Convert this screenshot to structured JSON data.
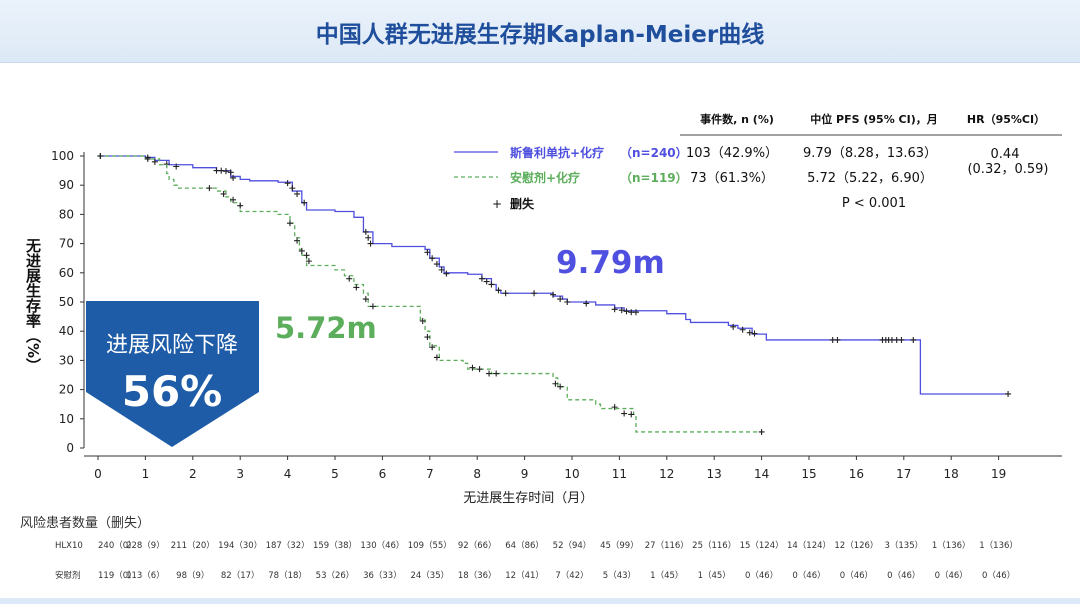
{
  "page": {
    "title": "中国人群无进展生存期Kaplan-Meier曲线"
  },
  "chart_data": {
    "type": "line",
    "subtype": "kaplan-meier",
    "title": "",
    "xlabel": "无进展生存时间（月）",
    "ylabel": "无进展生存率（%）",
    "xlim": [
      0,
      19
    ],
    "ylim": [
      0,
      100
    ],
    "x_ticks": [
      0,
      1,
      2,
      3,
      4,
      5,
      6,
      7,
      8,
      9,
      10,
      11,
      12,
      13,
      14,
      15,
      16,
      17,
      18,
      19
    ],
    "y_ticks": [
      0,
      10,
      20,
      30,
      40,
      50,
      60,
      70,
      80,
      90,
      100
    ],
    "grid": false,
    "legend_placement": "top-center",
    "table_headers": [
      "事件数, n (%)",
      "中位 PFS (95% CI)，月",
      "HR（95%CI）"
    ],
    "censor_label": "删失",
    "p_value": "P < 0.001",
    "hr": {
      "value": "0.44",
      "ci": "(0.32，0.59)"
    },
    "series": [
      {
        "name": "斯鲁利单抗+化疗",
        "n_label": "（n=240）",
        "color": "#4f4fe0",
        "dash": "solid",
        "events": "103（42.9%）",
        "median_pfs": "9.79（8.28，13.63）",
        "median_label": "9.79m",
        "steps": [
          [
            0,
            100
          ],
          [
            1.0,
            99.5
          ],
          [
            1.2,
            98.5
          ],
          [
            1.5,
            97
          ],
          [
            2.0,
            96
          ],
          [
            2.5,
            95
          ],
          [
            2.8,
            93
          ],
          [
            3.0,
            92
          ],
          [
            3.2,
            91.5
          ],
          [
            3.8,
            91
          ],
          [
            4.1,
            88
          ],
          [
            4.3,
            84
          ],
          [
            4.4,
            81.5
          ],
          [
            5.0,
            81
          ],
          [
            5.4,
            79
          ],
          [
            5.6,
            74
          ],
          [
            5.8,
            70
          ],
          [
            6.2,
            69
          ],
          [
            6.9,
            68
          ],
          [
            7.0,
            65
          ],
          [
            7.2,
            62
          ],
          [
            7.3,
            60
          ],
          [
            7.8,
            59.5
          ],
          [
            8.1,
            58
          ],
          [
            8.3,
            56
          ],
          [
            8.4,
            54
          ],
          [
            8.5,
            53
          ],
          [
            9.5,
            53
          ],
          [
            9.6,
            52
          ],
          [
            9.8,
            51
          ],
          [
            9.9,
            50
          ],
          [
            10.5,
            49
          ],
          [
            10.9,
            48
          ],
          [
            11.1,
            47
          ],
          [
            12.0,
            46
          ],
          [
            12.4,
            44
          ],
          [
            12.5,
            43
          ],
          [
            13.3,
            42
          ],
          [
            13.5,
            41
          ],
          [
            13.8,
            39
          ],
          [
            14.1,
            37
          ],
          [
            17.3,
            37
          ],
          [
            17.35,
            18.5
          ],
          [
            19.2,
            18.5
          ]
        ],
        "censors": [
          [
            0.05,
            100
          ],
          [
            1.05,
            99.5
          ],
          [
            1.45,
            97.2
          ],
          [
            1.65,
            96.4
          ],
          [
            2.5,
            95
          ],
          [
            2.6,
            95
          ],
          [
            2.7,
            94.8
          ],
          [
            2.8,
            94.4
          ],
          [
            2.85,
            92.5
          ],
          [
            4.0,
            90.7
          ],
          [
            4.1,
            89
          ],
          [
            4.2,
            87
          ],
          [
            4.35,
            84
          ],
          [
            5.65,
            74
          ],
          [
            5.7,
            72
          ],
          [
            5.75,
            70
          ],
          [
            6.95,
            67
          ],
          [
            7.05,
            65
          ],
          [
            7.15,
            63
          ],
          [
            7.25,
            61
          ],
          [
            7.35,
            59.7
          ],
          [
            8.1,
            58
          ],
          [
            8.2,
            57
          ],
          [
            8.3,
            56
          ],
          [
            8.45,
            54
          ],
          [
            8.6,
            53
          ],
          [
            9.2,
            53
          ],
          [
            9.6,
            52.5
          ],
          [
            9.75,
            51
          ],
          [
            9.9,
            50
          ],
          [
            10.3,
            49.5
          ],
          [
            10.9,
            47.5
          ],
          [
            11.05,
            47.2
          ],
          [
            11.15,
            46.8
          ],
          [
            11.25,
            46.5
          ],
          [
            11.35,
            46.5
          ],
          [
            13.4,
            41.5
          ],
          [
            13.6,
            40.5
          ],
          [
            13.75,
            39.5
          ],
          [
            13.85,
            39.2
          ],
          [
            15.5,
            37
          ],
          [
            15.6,
            37
          ],
          [
            16.55,
            37
          ],
          [
            16.62,
            37
          ],
          [
            16.68,
            37
          ],
          [
            16.75,
            37
          ],
          [
            16.85,
            37
          ],
          [
            16.95,
            37
          ],
          [
            17.2,
            37
          ],
          [
            19.2,
            18.5
          ]
        ]
      },
      {
        "name": "安慰剂+化疗",
        "n_label": "（n=119）",
        "color": "#5cae5c",
        "dash": "dashed",
        "events": "73（61.3%）",
        "median_pfs": "5.72（5.22，6.90）",
        "median_label": "5.72m",
        "steps": [
          [
            0,
            100
          ],
          [
            1.0,
            99
          ],
          [
            1.3,
            97
          ],
          [
            1.45,
            94
          ],
          [
            1.5,
            92
          ],
          [
            1.6,
            90
          ],
          [
            1.7,
            89
          ],
          [
            2.5,
            88
          ],
          [
            2.7,
            86
          ],
          [
            2.8,
            84
          ],
          [
            3.0,
            81
          ],
          [
            3.8,
            80
          ],
          [
            4.05,
            77
          ],
          [
            4.15,
            72
          ],
          [
            4.25,
            68
          ],
          [
            4.3,
            66
          ],
          [
            4.4,
            62.5
          ],
          [
            5.0,
            61
          ],
          [
            5.2,
            59
          ],
          [
            5.4,
            56
          ],
          [
            5.6,
            53
          ],
          [
            5.7,
            48.5
          ],
          [
            6.7,
            48.5
          ],
          [
            6.8,
            44
          ],
          [
            6.9,
            40
          ],
          [
            7.0,
            35
          ],
          [
            7.2,
            30
          ],
          [
            7.7,
            29
          ],
          [
            7.8,
            27
          ],
          [
            8.3,
            25.5
          ],
          [
            9.6,
            24
          ],
          [
            9.7,
            21
          ],
          [
            9.9,
            16.5
          ],
          [
            10.5,
            15
          ],
          [
            10.6,
            13.5
          ],
          [
            11.05,
            13.5
          ],
          [
            11.3,
            11.5
          ],
          [
            11.35,
            5.5
          ],
          [
            14.0,
            5.5
          ]
        ],
        "censors": [
          [
            0.05,
            100
          ],
          [
            1.05,
            99
          ],
          [
            1.2,
            98
          ],
          [
            2.35,
            89
          ],
          [
            2.65,
            87
          ],
          [
            2.85,
            85
          ],
          [
            3.0,
            83
          ],
          [
            4.05,
            77
          ],
          [
            4.2,
            71
          ],
          [
            4.3,
            67.5
          ],
          [
            4.4,
            66
          ],
          [
            4.45,
            64
          ],
          [
            5.3,
            58
          ],
          [
            5.45,
            55
          ],
          [
            5.65,
            51
          ],
          [
            5.8,
            48.5
          ],
          [
            6.85,
            43.5
          ],
          [
            6.95,
            38
          ],
          [
            7.05,
            34.5
          ],
          [
            7.15,
            31
          ],
          [
            7.9,
            27.5
          ],
          [
            8.05,
            27
          ],
          [
            8.25,
            25.5
          ],
          [
            8.4,
            25.5
          ],
          [
            9.65,
            22
          ],
          [
            9.75,
            21
          ],
          [
            10.9,
            14
          ],
          [
            11.1,
            11.8
          ],
          [
            11.25,
            11.5
          ],
          [
            14.0,
            5.5
          ]
        ]
      }
    ],
    "risk_table": {
      "header": "风险患者数量（删失）",
      "rows": [
        {
          "label": "HLX10",
          "values": [
            "240（0）",
            "228（9）",
            "211（20）",
            "194（30）",
            "187（32）",
            "159（38）",
            "130（46）",
            "109（55）",
            "92（66）",
            "64（86）",
            "52（94）",
            "45（99）",
            "27（116）",
            "25（116）",
            "15（124）",
            "14（124）",
            "12（126）",
            "3（135）",
            "1（136）",
            "1（136）"
          ]
        },
        {
          "label": "安慰剂",
          "values": [
            "119（0）",
            "113（6）",
            "98（9）",
            "82（17）",
            "78（18）",
            "53（26）",
            "36（33）",
            "24（35）",
            "18（36）",
            "12（41）",
            "7（42）",
            "5（43）",
            "1（45）",
            "1（45）",
            "0（46）",
            "0（46）",
            "0（46）",
            "0（46）",
            "0（46）",
            "0（46）"
          ]
        }
      ]
    },
    "callout": {
      "text": "进展风险下降",
      "value": "56%",
      "color": "#1f5ca8"
    }
  }
}
